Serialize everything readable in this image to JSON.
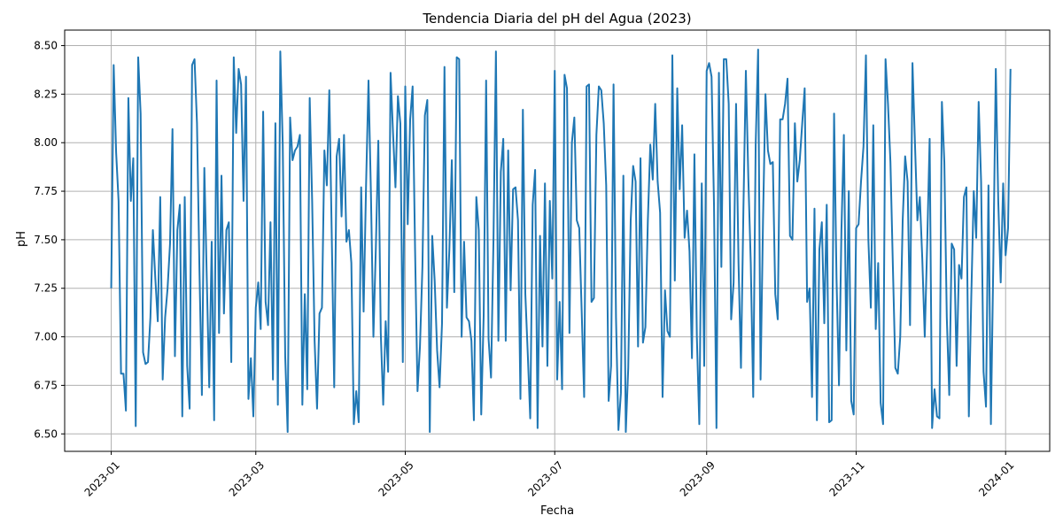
{
  "chart_data": {
    "type": "line",
    "title": "Tendencia Diaria del pH del Agua (2023)",
    "xlabel": "Fecha",
    "ylabel": "pH",
    "x_start": "2023-01-01",
    "x_end": "2023-12-31",
    "xlim": [
      "2022-12-13",
      "2024-01-19"
    ],
    "ylim": [
      6.41,
      8.58
    ],
    "grid": true,
    "color": "#1f77b4",
    "xticks": [
      {
        "label": "2023-01",
        "date": "2023-01-01"
      },
      {
        "label": "2023-03",
        "date": "2023-03-01"
      },
      {
        "label": "2023-05",
        "date": "2023-05-01"
      },
      {
        "label": "2023-07",
        "date": "2023-07-01"
      },
      {
        "label": "2023-09",
        "date": "2023-09-01"
      },
      {
        "label": "2023-11",
        "date": "2023-11-01"
      },
      {
        "label": "2024-01",
        "date": "2024-01-01"
      }
    ],
    "yticks": [
      6.5,
      6.75,
      7.0,
      7.25,
      7.5,
      7.75,
      8.0,
      8.25,
      8.5
    ],
    "ytick_labels": [
      "6.50",
      "6.75",
      "7.00",
      "7.25",
      "7.50",
      "7.75",
      "8.00",
      "8.25",
      "8.50"
    ],
    "series": [
      {
        "values": [
          7.25,
          8.4,
          7.95,
          7.7,
          6.81,
          6.81,
          6.62,
          8.23,
          7.7,
          7.92,
          6.54,
          8.44,
          8.15,
          6.92,
          6.86,
          6.87,
          7.1,
          7.55,
          7.3,
          7.08,
          7.72,
          6.78,
          7.1,
          7.25,
          7.48,
          8.07,
          6.9,
          7.55,
          7.68,
          6.59,
          7.72,
          6.85,
          6.63,
          8.4,
          8.43,
          8.1,
          7.35,
          6.7,
          7.87,
          7.3,
          6.74,
          7.49,
          6.57,
          8.32,
          7.02,
          7.83,
          7.12,
          7.55,
          7.59,
          6.87,
          8.44,
          8.05,
          8.38,
          8.3,
          7.7,
          8.34,
          6.68,
          6.89,
          6.59,
          7.15,
          7.28,
          7.04,
          8.16,
          7.18,
          7.06,
          7.59,
          6.78,
          8.1,
          6.65,
          8.47,
          7.99,
          6.9,
          6.51,
          8.13,
          7.91,
          7.96,
          7.98,
          8.04,
          6.65,
          7.22,
          6.73,
          8.23,
          7.7,
          6.98,
          6.63,
          7.12,
          7.15,
          7.96,
          7.78,
          8.27,
          7.52,
          6.74,
          7.93,
          8.02,
          7.62,
          8.04,
          7.49,
          7.55,
          7.38,
          6.55,
          6.72,
          6.56,
          7.77,
          7.13,
          7.78,
          8.32,
          7.73,
          7.0,
          7.46,
          8.01,
          7.02,
          6.65,
          7.08,
          6.82,
          8.36,
          8.05,
          7.77,
          8.24,
          8.1,
          6.87,
          8.29,
          7.58,
          8.12,
          8.29,
          7.45,
          6.72,
          6.95,
          7.36,
          8.14,
          8.22,
          6.51,
          7.52,
          7.29,
          6.93,
          6.74,
          7.07,
          8.39,
          7.15,
          7.45,
          7.91,
          7.23,
          8.44,
          8.43,
          7.0,
          7.49,
          7.1,
          7.08,
          6.98,
          6.57,
          7.72,
          7.55,
          6.6,
          7.11,
          8.32,
          6.99,
          6.79,
          7.5,
          8.47,
          6.98,
          7.85,
          8.02,
          6.98,
          7.96,
          7.24,
          7.76,
          7.77,
          7.6,
          6.68,
          8.17,
          7.22,
          6.91,
          6.58,
          7.68,
          7.86,
          6.53,
          7.52,
          6.95,
          7.79,
          6.85,
          7.7,
          7.3,
          8.37,
          6.78,
          7.18,
          6.73,
          8.35,
          8.28,
          7.02,
          8.0,
          8.13,
          7.6,
          7.56,
          7.13,
          6.69,
          8.29,
          8.3,
          7.18,
          7.2,
          8.04,
          8.29,
          8.27,
          8.1,
          7.78,
          6.67,
          6.85,
          8.3,
          7.1,
          6.52,
          6.71,
          7.83,
          6.51,
          6.84,
          7.6,
          7.88,
          7.8,
          6.95,
          7.92,
          6.97,
          7.05,
          7.6,
          7.99,
          7.81,
          8.2,
          7.8,
          7.64,
          6.69,
          7.24,
          7.03,
          7.0,
          8.45,
          7.29,
          8.28,
          7.76,
          8.09,
          7.51,
          7.65,
          7.44,
          6.89,
          7.94,
          7.0,
          6.55,
          7.79,
          6.85,
          8.37,
          8.41,
          8.34,
          7.68,
          6.53,
          8.36,
          7.36,
          8.43,
          8.43,
          8.2,
          7.09,
          7.28,
          8.2,
          7.38,
          6.84,
          7.66,
          8.37,
          7.82,
          7.38,
          6.69,
          7.99,
          8.48,
          6.78,
          7.6,
          8.25,
          7.96,
          7.89,
          7.9,
          7.22,
          7.09,
          8.12,
          8.12,
          8.2,
          8.33,
          7.52,
          7.5,
          8.1,
          7.8,
          7.91,
          8.1,
          8.28,
          7.18,
          7.25,
          6.69,
          7.66,
          6.57,
          7.45,
          7.59,
          7.07,
          7.68,
          6.56,
          6.57,
          8.15,
          7.3,
          6.75,
          7.55,
          8.04,
          6.93,
          7.75,
          6.67,
          6.6,
          7.56,
          7.58,
          7.8,
          7.98,
          8.45,
          7.5,
          7.15,
          8.09,
          7.04,
          7.38,
          6.66,
          6.55,
          8.43,
          8.2,
          7.9,
          7.36,
          6.84,
          6.81,
          7.0,
          7.6,
          7.93,
          7.8,
          7.06,
          8.41,
          8.0,
          7.6,
          7.72,
          7.4,
          7.0,
          7.48,
          8.02,
          6.53,
          6.73,
          6.59,
          6.58,
          8.21,
          7.9,
          7.1,
          6.7,
          7.48,
          7.45,
          6.85,
          7.37,
          7.3,
          7.72,
          7.77,
          6.59,
          7.21,
          7.75,
          7.51,
          8.21,
          7.8,
          6.82,
          6.64,
          7.78,
          6.55,
          7.4,
          8.38,
          7.7,
          7.28,
          7.79,
          7.42,
          7.56,
          8.38
        ]
      }
    ]
  }
}
